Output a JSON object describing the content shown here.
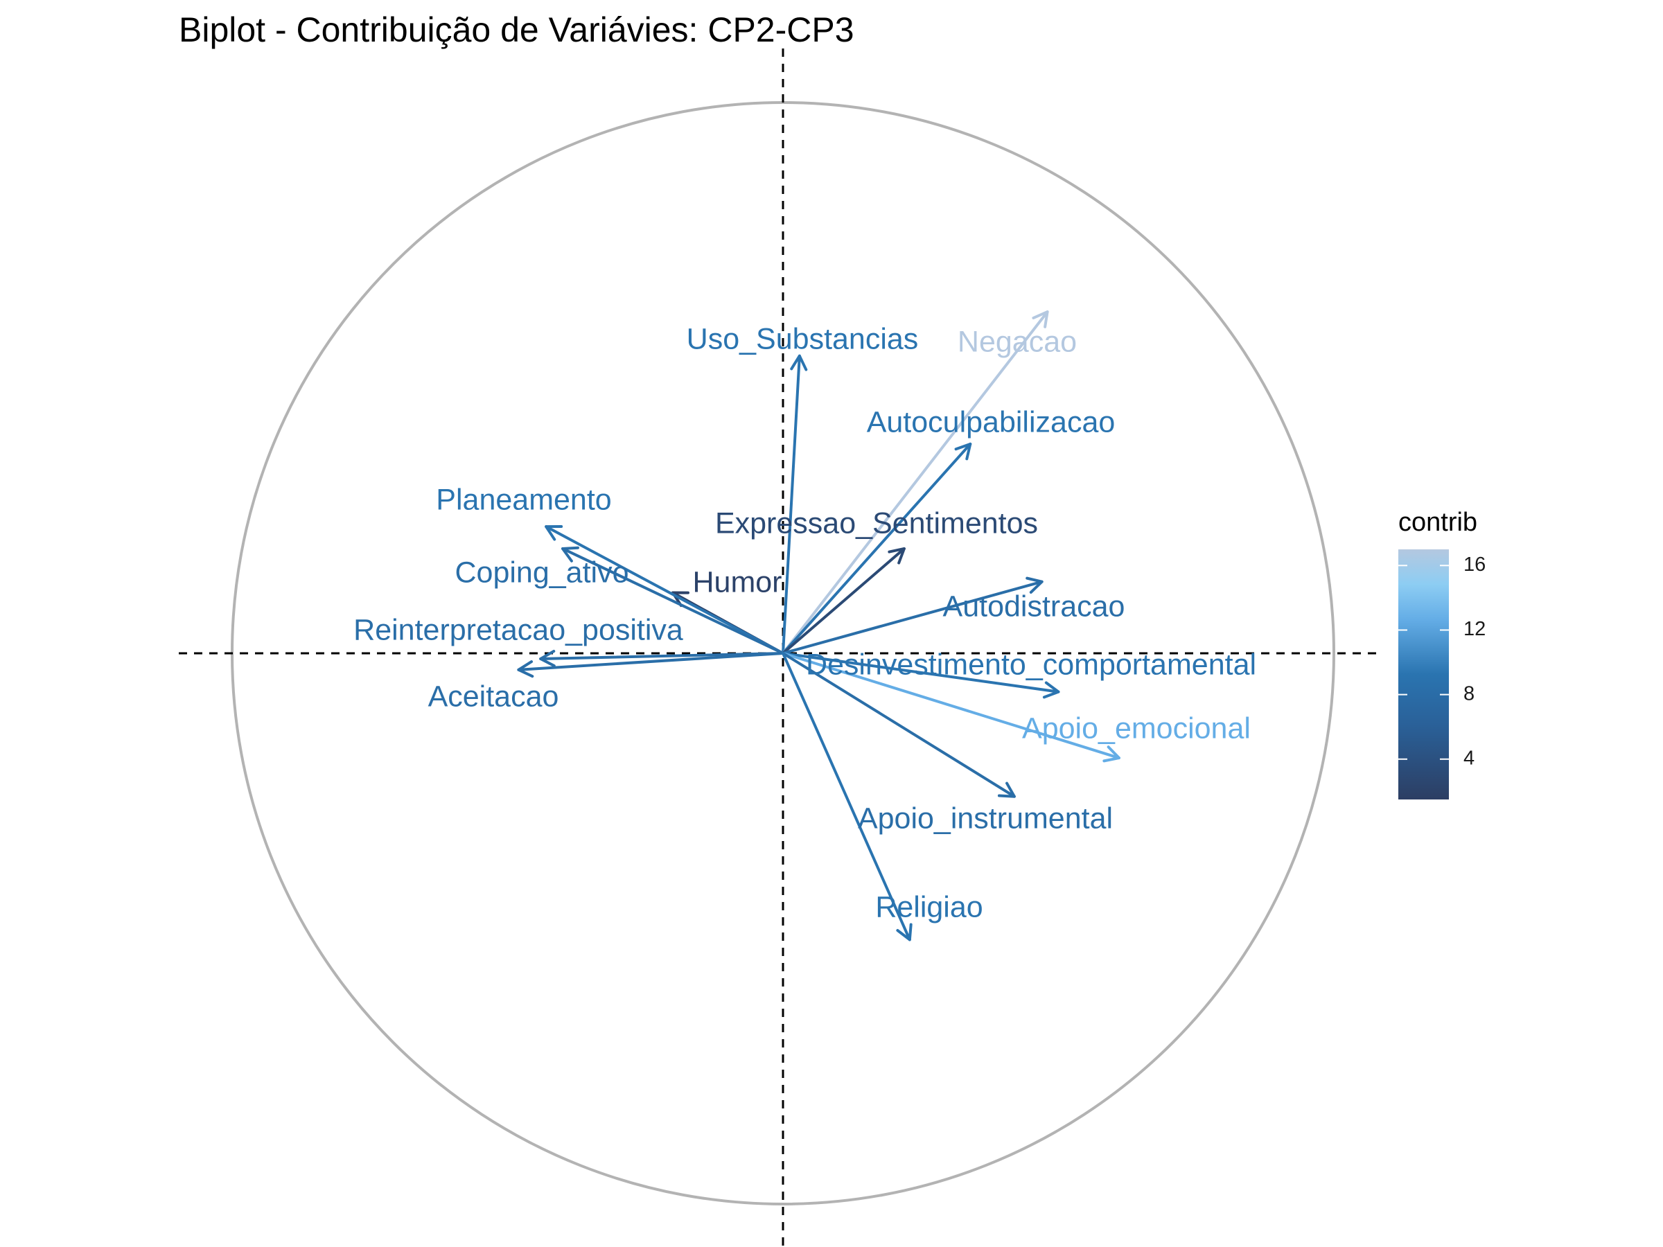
{
  "chart_data": {
    "type": "scatter",
    "subtype": "pca-variable-biplot",
    "title": "Biplot - Contribuição de Variávies: CP2-CP3",
    "xlabel": "",
    "ylabel": "",
    "xlim": [
      -1.1,
      1.2
    ],
    "ylim": [
      -1.1,
      1.1
    ],
    "correlation_circle": true,
    "reference_lines": "dashed at x=0 and y=0",
    "grid": false,
    "legend": {
      "title": "contrib",
      "placement": "right",
      "ticks": [
        4,
        8,
        12,
        16
      ],
      "range": [
        1.5,
        17
      ],
      "colors": [
        "#2c3e63",
        "#2a74b0",
        "#8dcdf3",
        "#b4c8e0"
      ]
    },
    "variables": [
      {
        "name": "Uso_Substancias",
        "x": 0.03,
        "y": 0.54,
        "contrib": 9
      },
      {
        "name": "Negacao",
        "x": 0.48,
        "y": 0.62,
        "contrib": 17
      },
      {
        "name": "Autoculpabilizacao",
        "x": 0.34,
        "y": 0.38,
        "contrib": 9
      },
      {
        "name": "Expressao_Sentimentos",
        "x": 0.22,
        "y": 0.19,
        "contrib": 3
      },
      {
        "name": "Humor",
        "x": -0.2,
        "y": 0.11,
        "contrib": 2
      },
      {
        "name": "Planeamento",
        "x": -0.43,
        "y": 0.23,
        "contrib": 9
      },
      {
        "name": "Coping_ativo",
        "x": -0.4,
        "y": 0.19,
        "contrib": 8
      },
      {
        "name": "Autodistracao",
        "x": 0.47,
        "y": 0.13,
        "contrib": 8
      },
      {
        "name": "Reinterpretacao_positiva",
        "x": -0.44,
        "y": -0.01,
        "contrib": 8
      },
      {
        "name": "Aceitacao",
        "x": -0.48,
        "y": -0.03,
        "contrib": 8
      },
      {
        "name": "Desinvestimento_comportamental",
        "x": 0.5,
        "y": -0.07,
        "contrib": 9
      },
      {
        "name": "Apoio_emocional",
        "x": 0.61,
        "y": -0.19,
        "contrib": 13
      },
      {
        "name": "Apoio_instrumental",
        "x": 0.42,
        "y": -0.26,
        "contrib": 8
      },
      {
        "name": "Religiao",
        "x": 0.23,
        "y": -0.52,
        "contrib": 9
      }
    ]
  }
}
